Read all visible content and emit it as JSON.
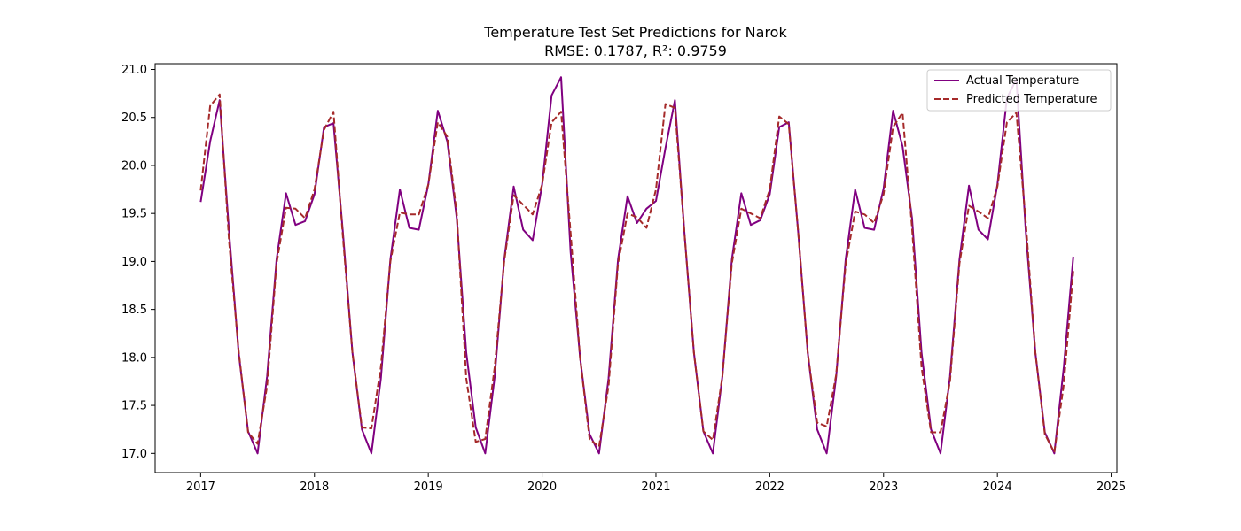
{
  "chart_data": {
    "type": "line",
    "title": "Temperature Test Set Predictions for Narok",
    "subtitle": "RMSE: 0.1787, R²: 0.9759",
    "xlabel": "",
    "ylabel": "",
    "x_start": "2017-01",
    "x_ticks": [
      "2017",
      "2018",
      "2019",
      "2020",
      "2021",
      "2022",
      "2023",
      "2024",
      "2025"
    ],
    "y_ticks": [
      "17.0",
      "17.5",
      "18.0",
      "18.5",
      "19.0",
      "19.5",
      "20.0",
      "20.5",
      "21.0"
    ],
    "xlim": [
      2016.6,
      2025.05
    ],
    "ylim": [
      16.8,
      21.06
    ],
    "grid": false,
    "legend_position": "top-right",
    "series": [
      {
        "name": "Actual Temperature",
        "color": "#800080",
        "style": "solid",
        "values": [
          19.62,
          20.25,
          20.68,
          19.3,
          18.05,
          17.23,
          17.0,
          17.8,
          19.02,
          19.71,
          19.38,
          19.42,
          19.7,
          20.4,
          20.44,
          19.3,
          18.05,
          17.25,
          17.0,
          17.78,
          19.02,
          19.75,
          19.35,
          19.33,
          19.8,
          20.57,
          20.25,
          19.45,
          18.05,
          17.27,
          17.0,
          17.8,
          19.02,
          19.78,
          19.33,
          19.22,
          19.8,
          20.73,
          20.92,
          19.1,
          18.0,
          17.2,
          17.0,
          17.78,
          19.02,
          19.68,
          19.4,
          19.55,
          19.63,
          20.18,
          20.68,
          19.3,
          18.05,
          17.23,
          17.0,
          17.8,
          19.02,
          19.71,
          19.38,
          19.43,
          19.7,
          20.4,
          20.45,
          19.3,
          18.05,
          17.25,
          17.0,
          17.8,
          19.02,
          19.75,
          19.35,
          19.33,
          19.76,
          20.57,
          20.2,
          19.45,
          18.05,
          17.25,
          17.0,
          17.8,
          19.02,
          19.79,
          19.33,
          19.23,
          19.8,
          20.7,
          20.9,
          19.3,
          18.05,
          17.22,
          17.0,
          17.9,
          19.05
        ]
      },
      {
        "name": "Predicted Temperature",
        "color": "#a52a2a",
        "style": "dashed",
        "values": [
          19.74,
          20.62,
          20.74,
          19.2,
          18.07,
          17.22,
          17.1,
          17.7,
          18.98,
          19.56,
          19.55,
          19.45,
          19.75,
          20.37,
          20.56,
          19.25,
          18.05,
          17.27,
          17.26,
          17.9,
          19.0,
          19.51,
          19.49,
          19.49,
          19.8,
          20.45,
          20.3,
          19.5,
          17.78,
          17.12,
          17.15,
          17.9,
          19.0,
          19.69,
          19.59,
          19.49,
          19.8,
          20.45,
          20.56,
          19.3,
          18.0,
          17.15,
          17.07,
          17.7,
          18.98,
          19.5,
          19.46,
          19.35,
          19.75,
          20.64,
          20.6,
          19.3,
          18.05,
          17.23,
          17.14,
          17.8,
          18.98,
          19.55,
          19.5,
          19.45,
          19.75,
          20.51,
          20.43,
          19.3,
          18.05,
          17.32,
          17.28,
          17.82,
          18.97,
          19.52,
          19.49,
          19.4,
          19.7,
          20.4,
          20.55,
          19.35,
          17.9,
          17.22,
          17.22,
          17.75,
          18.98,
          19.58,
          19.52,
          19.45,
          19.78,
          20.45,
          20.55,
          19.4,
          18.05,
          17.2,
          17.01,
          17.72,
          18.9
        ]
      }
    ]
  }
}
